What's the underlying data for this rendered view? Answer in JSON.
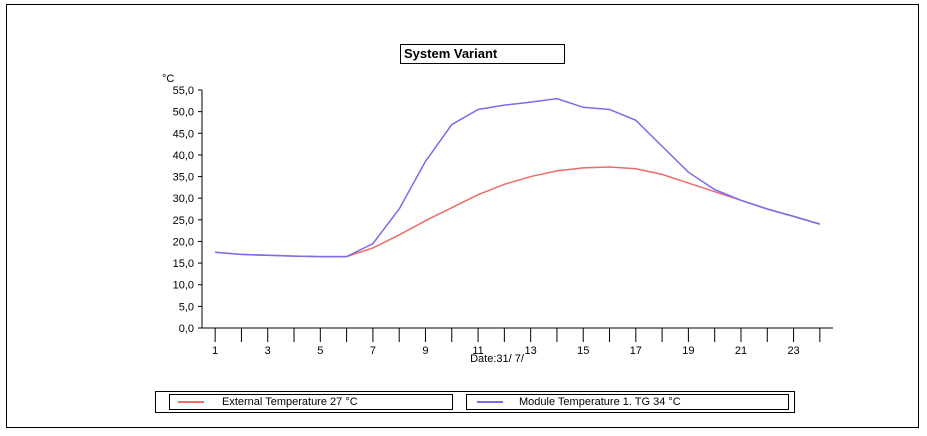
{
  "chart_data": {
    "type": "line",
    "title": "System Variant",
    "ylabel": "°C",
    "xlabel": "Date:31/ 7/",
    "ylim": [
      0,
      55
    ],
    "yticks": [
      "0,0",
      "5,0",
      "10,0",
      "15,0",
      "20,0",
      "25,0",
      "30,0",
      "35,0",
      "40,0",
      "45,0",
      "50,0",
      "55,0"
    ],
    "x": [
      1,
      2,
      3,
      4,
      5,
      6,
      7,
      8,
      9,
      10,
      11,
      12,
      13,
      14,
      15,
      16,
      17,
      18,
      19,
      20,
      21,
      22,
      23,
      24
    ],
    "xtick_labels": [
      "1",
      "3",
      "5",
      "7",
      "9",
      "11",
      "13",
      "15",
      "17",
      "19",
      "21",
      "23"
    ],
    "series": [
      {
        "name": "External Temperature  27  °C",
        "color": "#ee6b6b",
        "values": [
          17.5,
          17.0,
          16.8,
          16.6,
          16.5,
          16.5,
          18.5,
          21.5,
          24.8,
          27.8,
          30.8,
          33.2,
          35.0,
          36.3,
          37.0,
          37.2,
          36.8,
          35.5,
          33.5,
          31.5,
          29.5,
          27.5,
          25.8,
          24.0
        ]
      },
      {
        "name": "Module Temperature 1. TG  34  °C",
        "color": "#7b6bf0",
        "values": [
          17.5,
          17.0,
          16.8,
          16.6,
          16.5,
          16.5,
          19.5,
          27.5,
          38.5,
          47.0,
          50.5,
          51.5,
          52.2,
          53.0,
          51.0,
          50.5,
          48.0,
          42.0,
          36.0,
          32.0,
          29.5,
          27.5,
          25.8,
          24.0
        ]
      }
    ]
  }
}
